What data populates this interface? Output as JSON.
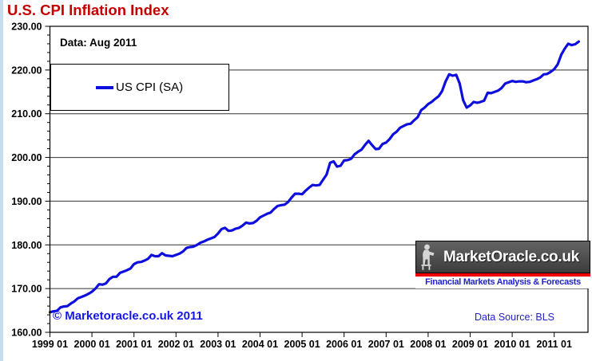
{
  "title": "U.S. CPI Inflation Index",
  "annotations": {
    "data_note": "Data: Aug 2011",
    "copyright": "© Marketoracle.co.uk 2011",
    "data_source": "Data Source: BLS"
  },
  "legend": {
    "label": "US CPI (SA)"
  },
  "logo": {
    "site": "MarketOracle.co.uk",
    "tagline": "Financial Markets Analysis & Forecasts"
  },
  "colors": {
    "title": "#c40000",
    "line": "#0f0fdd",
    "copyright": "#1616ee",
    "source_text": "#2222cc",
    "tagline": "#2222cc",
    "logo_stripe": "#ee0000",
    "left_strip": "#c6dff0",
    "gridline": "#303030"
  },
  "chart_data": {
    "type": "line",
    "title": "U.S. CPI Inflation Index",
    "xlabel": "",
    "ylabel": "",
    "ylim": [
      160,
      230
    ],
    "ytick_step": 10,
    "ytick_labels": [
      "230.00",
      "220.00",
      "210.00",
      "200.00",
      "190.00",
      "180.00",
      "170.00",
      "160.00"
    ],
    "xtick_labels": [
      "1999 01",
      "2000 01",
      "2001 01",
      "2002 01",
      "2003 01",
      "2004 01",
      "2005 01",
      "2006 01",
      "2007 01",
      "2008 01",
      "2009 01",
      "2010 01",
      "2011 01"
    ],
    "grid": "horizontal-only",
    "legend_position": "top-left-box",
    "series": [
      {
        "name": "US CPI (SA)",
        "frequency": "monthly",
        "x_start": "1999-01",
        "x_end": "2011-08",
        "values": [
          164.6,
          164.8,
          164.9,
          165.7,
          165.9,
          166.0,
          166.6,
          167.1,
          167.8,
          168.1,
          168.4,
          168.8,
          169.3,
          170.0,
          171.0,
          170.9,
          171.2,
          172.2,
          172.7,
          172.7,
          173.6,
          173.9,
          174.2,
          174.6,
          175.6,
          176.0,
          176.1,
          176.4,
          176.8,
          177.7,
          177.4,
          177.4,
          178.1,
          177.6,
          177.5,
          177.4,
          177.7,
          178.0,
          178.5,
          179.3,
          179.5,
          179.6,
          180.0,
          180.5,
          180.8,
          181.2,
          181.5,
          181.8,
          182.6,
          183.6,
          183.9,
          183.2,
          183.3,
          183.7,
          183.9,
          184.4,
          185.1,
          184.9,
          185.0,
          185.5,
          186.3,
          186.7,
          187.1,
          187.4,
          188.2,
          188.9,
          189.1,
          189.2,
          189.8,
          190.8,
          191.7,
          191.7,
          191.6,
          192.4,
          193.1,
          193.7,
          193.6,
          193.7,
          194.9,
          196.1,
          198.8,
          199.1,
          197.9,
          198.1,
          199.3,
          199.4,
          199.7,
          200.7,
          201.3,
          201.8,
          202.9,
          203.8,
          202.8,
          201.9,
          202.0,
          203.1,
          203.4,
          204.2,
          205.3,
          205.9,
          206.8,
          207.2,
          207.6,
          207.7,
          208.5,
          209.2,
          210.8,
          211.4,
          212.2,
          212.7,
          213.4,
          214.0,
          215.2,
          217.4,
          219.0,
          218.7,
          218.9,
          216.9,
          213.1,
          211.4,
          211.9,
          212.7,
          212.5,
          212.7,
          213.0,
          214.8,
          214.7,
          215.0,
          215.3,
          215.9,
          216.9,
          217.2,
          217.5,
          217.3,
          217.4,
          217.4,
          217.2,
          217.3,
          217.6,
          217.9,
          218.3,
          219.0,
          219.1,
          219.6,
          220.2,
          221.3,
          223.5,
          224.9,
          226.0,
          225.7,
          225.9,
          226.5
        ]
      }
    ]
  }
}
